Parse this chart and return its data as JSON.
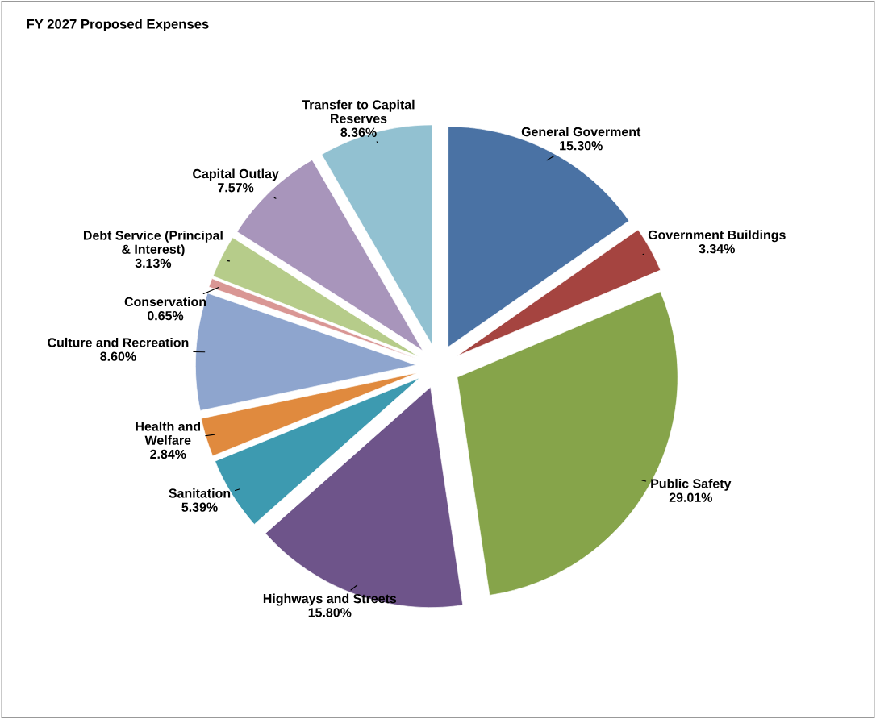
{
  "chart_data": {
    "type": "pie",
    "title": "FY 2027 Proposed Expenses",
    "categories": [
      "General Goverment",
      "Government Buildings",
      "Public Safety",
      "Highways and Streets",
      "Sanitation",
      "Health and\nWelfare",
      "Culture and Recreation",
      "Conservation",
      "Debt Service (Principal\n& Interest)",
      "Capital Outlay",
      "Transfer to Capital\nReserves"
    ],
    "values": [
      15.3,
      3.34,
      29.01,
      15.8,
      5.39,
      2.84,
      8.6,
      0.65,
      3.13,
      7.57,
      8.36
    ],
    "value_labels": [
      "15.30%",
      "3.34%",
      "29.01%",
      "15.80%",
      "5.39%",
      "2.84%",
      "8.60%",
      "0.65%",
      "3.13%",
      "7.57%",
      "8.36%"
    ],
    "colors": [
      "#4a72a4",
      "#a54440",
      "#86a44a",
      "#6e548a",
      "#3d9ab0",
      "#e08a3e",
      "#8ea5ce",
      "#d99694",
      "#b6cc8a",
      "#a895bb",
      "#92c1d1"
    ],
    "legend": false
  }
}
